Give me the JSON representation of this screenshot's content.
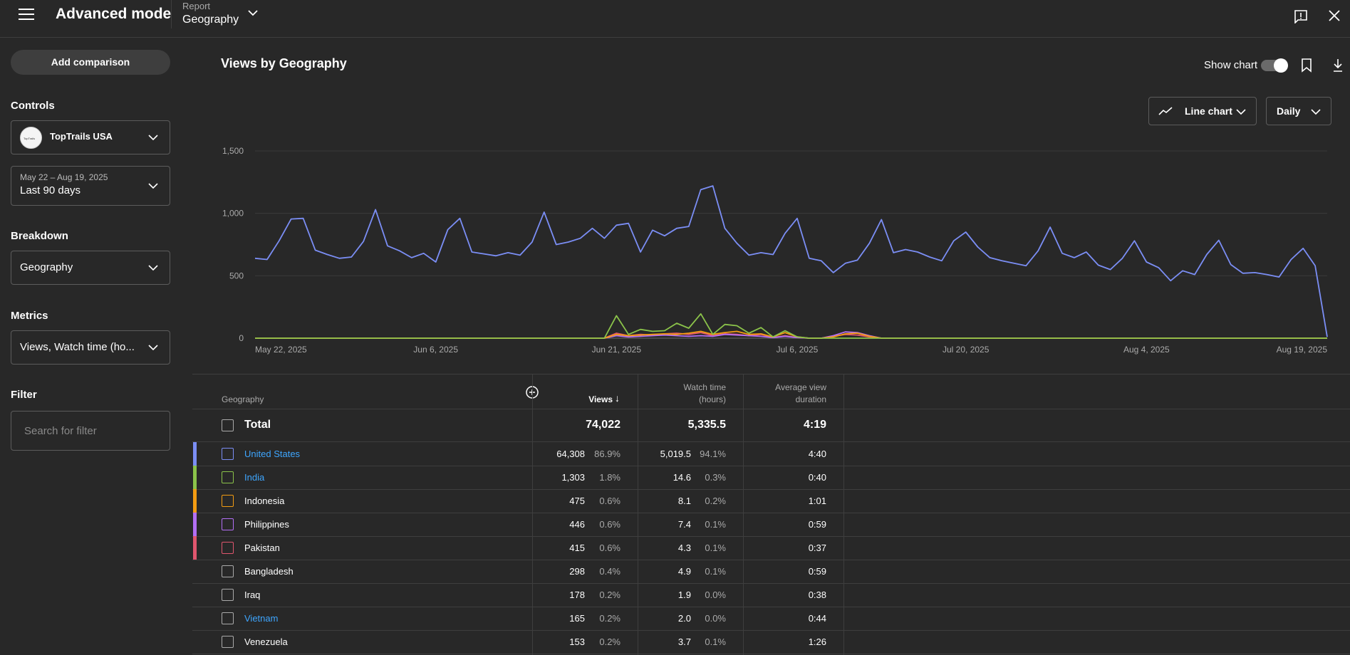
{
  "topbar": {
    "app_title": "Advanced mode",
    "report_label": "Report",
    "report_value": "Geography"
  },
  "sidebar": {
    "add_comparison": "Add comparison",
    "controls_heading": "Controls",
    "channel_name": "TopTrails USA",
    "channel_logo_text": "TopTrails",
    "date_range_sub": "May 22 – Aug 19, 2025",
    "date_range_main": "Last 90 days",
    "breakdown_heading": "Breakdown",
    "breakdown_value": "Geography",
    "metrics_heading": "Metrics",
    "metrics_value": "Views, Watch time (ho...",
    "filter_heading": "Filter",
    "filter_placeholder": "Search for filter"
  },
  "main": {
    "title": "Views by Geography",
    "show_chart_label": "Show chart",
    "show_chart_on": true,
    "chart_type_label": "Line chart",
    "period_label": "Daily"
  },
  "chart_data": {
    "type": "line",
    "ylim": [
      0,
      1500
    ],
    "y_ticks": [
      "0",
      "500",
      "1,000",
      "1,500"
    ],
    "x_tick_labels": [
      "May 22, 2025",
      "Jun 6, 2025",
      "Jun 21, 2025",
      "Jul 6, 2025",
      "Jul 20, 2025",
      "Aug 4, 2025",
      "Aug 19, 2025"
    ],
    "x_tick_days": [
      0,
      15,
      30,
      45,
      59,
      74,
      89
    ],
    "grid": true,
    "series": [
      {
        "color": "#7b8ef5",
        "values": [
          640,
          630,
          780,
          955,
          960,
          705,
          670,
          640,
          650,
          775,
          1030,
          740,
          700,
          645,
          680,
          610,
          870,
          960,
          690,
          675,
          660,
          685,
          665,
          770,
          1010,
          750,
          770,
          800,
          880,
          800,
          905,
          920,
          690,
          865,
          820,
          880,
          895,
          1190,
          1220,
          880,
          760,
          665,
          685,
          670,
          840,
          960,
          640,
          620,
          525,
          600,
          625,
          760,
          950,
          685,
          710,
          690,
          650,
          620,
          780,
          850,
          730,
          645,
          620,
          600,
          580,
          700,
          890,
          680,
          645,
          690,
          585,
          550,
          640,
          780,
          610,
          565,
          460,
          540,
          510,
          670,
          785,
          590,
          520,
          525,
          510,
          490,
          630,
          720,
          580,
          10
        ]
      },
      {
        "color": "#8bc34a",
        "values": [
          0,
          0,
          0,
          0,
          0,
          0,
          0,
          0,
          0,
          0,
          0,
          0,
          0,
          0,
          0,
          0,
          0,
          0,
          0,
          0,
          0,
          0,
          0,
          0,
          0,
          0,
          0,
          0,
          0,
          0,
          180,
          30,
          70,
          55,
          60,
          120,
          80,
          195,
          30,
          110,
          100,
          40,
          85,
          10,
          60,
          10,
          0,
          0,
          0,
          0,
          0,
          0,
          0,
          0,
          0,
          0,
          0,
          0,
          0,
          0,
          0,
          0,
          0,
          0,
          0,
          0,
          0,
          0,
          0,
          0,
          0,
          0,
          0,
          0,
          0,
          0,
          0,
          0,
          0,
          0,
          0,
          0,
          0,
          0,
          0,
          0,
          0,
          0,
          0,
          0
        ]
      },
      {
        "color": "#f39c12",
        "values": [
          0,
          0,
          0,
          0,
          0,
          0,
          0,
          0,
          0,
          0,
          0,
          0,
          0,
          0,
          0,
          0,
          0,
          0,
          0,
          0,
          0,
          0,
          0,
          0,
          0,
          0,
          0,
          0,
          0,
          0,
          30,
          20,
          25,
          30,
          35,
          30,
          40,
          55,
          30,
          45,
          55,
          30,
          35,
          10,
          45,
          10,
          0,
          0,
          10,
          35,
          40,
          15,
          0,
          0,
          0,
          0,
          0,
          0,
          0,
          0,
          0,
          0,
          0,
          0,
          0,
          0,
          0,
          0,
          0,
          0,
          0,
          0,
          0,
          0,
          0,
          0,
          0,
          0,
          0,
          0,
          0,
          0,
          0,
          0,
          0,
          0,
          0,
          0,
          0,
          0
        ]
      },
      {
        "color": "#b36ff5",
        "values": [
          0,
          0,
          0,
          0,
          0,
          0,
          0,
          0,
          0,
          0,
          0,
          0,
          0,
          0,
          0,
          0,
          0,
          0,
          0,
          0,
          0,
          0,
          0,
          0,
          0,
          0,
          0,
          0,
          0,
          0,
          20,
          10,
          15,
          20,
          25,
          20,
          15,
          20,
          15,
          30,
          25,
          20,
          15,
          5,
          15,
          5,
          0,
          0,
          20,
          50,
          45,
          20,
          0,
          0,
          0,
          0,
          0,
          0,
          0,
          0,
          0,
          0,
          0,
          0,
          0,
          0,
          0,
          0,
          0,
          0,
          0,
          0,
          0,
          0,
          0,
          0,
          0,
          0,
          0,
          0,
          0,
          0,
          0,
          0,
          0,
          0,
          0,
          0,
          0,
          0
        ]
      },
      {
        "color": "#e0566e",
        "values": [
          0,
          0,
          0,
          0,
          0,
          0,
          0,
          0,
          0,
          0,
          0,
          0,
          0,
          0,
          0,
          0,
          0,
          0,
          0,
          0,
          0,
          0,
          0,
          0,
          0,
          0,
          0,
          0,
          0,
          0,
          40,
          20,
          30,
          25,
          35,
          40,
          30,
          45,
          20,
          35,
          30,
          20,
          30,
          5,
          20,
          5,
          0,
          0,
          15,
          30,
          25,
          10,
          0,
          0,
          0,
          0,
          0,
          0,
          0,
          0,
          0,
          0,
          0,
          0,
          0,
          0,
          0,
          0,
          0,
          0,
          0,
          0,
          0,
          0,
          0,
          0,
          0,
          0,
          0,
          0,
          0,
          0,
          0,
          0,
          0,
          0,
          0,
          0,
          0,
          0
        ]
      }
    ]
  },
  "table": {
    "headers": {
      "geography": "Geography",
      "views": "Views",
      "watch_time_1": "Watch time",
      "watch_time_2": "(hours)",
      "avd_1": "Average view",
      "avd_2": "duration"
    },
    "total": {
      "label": "Total",
      "views": "74,022",
      "watch": "5,335.5",
      "avd": "4:19"
    },
    "rows": [
      {
        "name": "United States",
        "link": true,
        "color": "#7b8ef5",
        "views": "64,308",
        "views_pct": "86.9%",
        "watch": "5,019.5",
        "watch_pct": "94.1%",
        "avd": "4:40"
      },
      {
        "name": "India",
        "link": true,
        "color": "#8bc34a",
        "views": "1,303",
        "views_pct": "1.8%",
        "watch": "14.6",
        "watch_pct": "0.3%",
        "avd": "0:40"
      },
      {
        "name": "Indonesia",
        "link": false,
        "color": "#f39c12",
        "views": "475",
        "views_pct": "0.6%",
        "watch": "8.1",
        "watch_pct": "0.2%",
        "avd": "1:01"
      },
      {
        "name": "Philippines",
        "link": false,
        "color": "#b36ff5",
        "views": "446",
        "views_pct": "0.6%",
        "watch": "7.4",
        "watch_pct": "0.1%",
        "avd": "0:59"
      },
      {
        "name": "Pakistan",
        "link": false,
        "color": "#e0566e",
        "views": "415",
        "views_pct": "0.6%",
        "watch": "4.3",
        "watch_pct": "0.1%",
        "avd": "0:37"
      },
      {
        "name": "Bangladesh",
        "link": false,
        "color": "",
        "views": "298",
        "views_pct": "0.4%",
        "watch": "4.9",
        "watch_pct": "0.1%",
        "avd": "0:59"
      },
      {
        "name": "Iraq",
        "link": false,
        "color": "",
        "views": "178",
        "views_pct": "0.2%",
        "watch": "1.9",
        "watch_pct": "0.0%",
        "avd": "0:38"
      },
      {
        "name": "Vietnam",
        "link": true,
        "color": "",
        "views": "165",
        "views_pct": "0.2%",
        "watch": "2.0",
        "watch_pct": "0.0%",
        "avd": "0:44"
      },
      {
        "name": "Venezuela",
        "link": false,
        "color": "",
        "views": "153",
        "views_pct": "0.2%",
        "watch": "3.7",
        "watch_pct": "0.1%",
        "avd": "1:26"
      }
    ]
  }
}
